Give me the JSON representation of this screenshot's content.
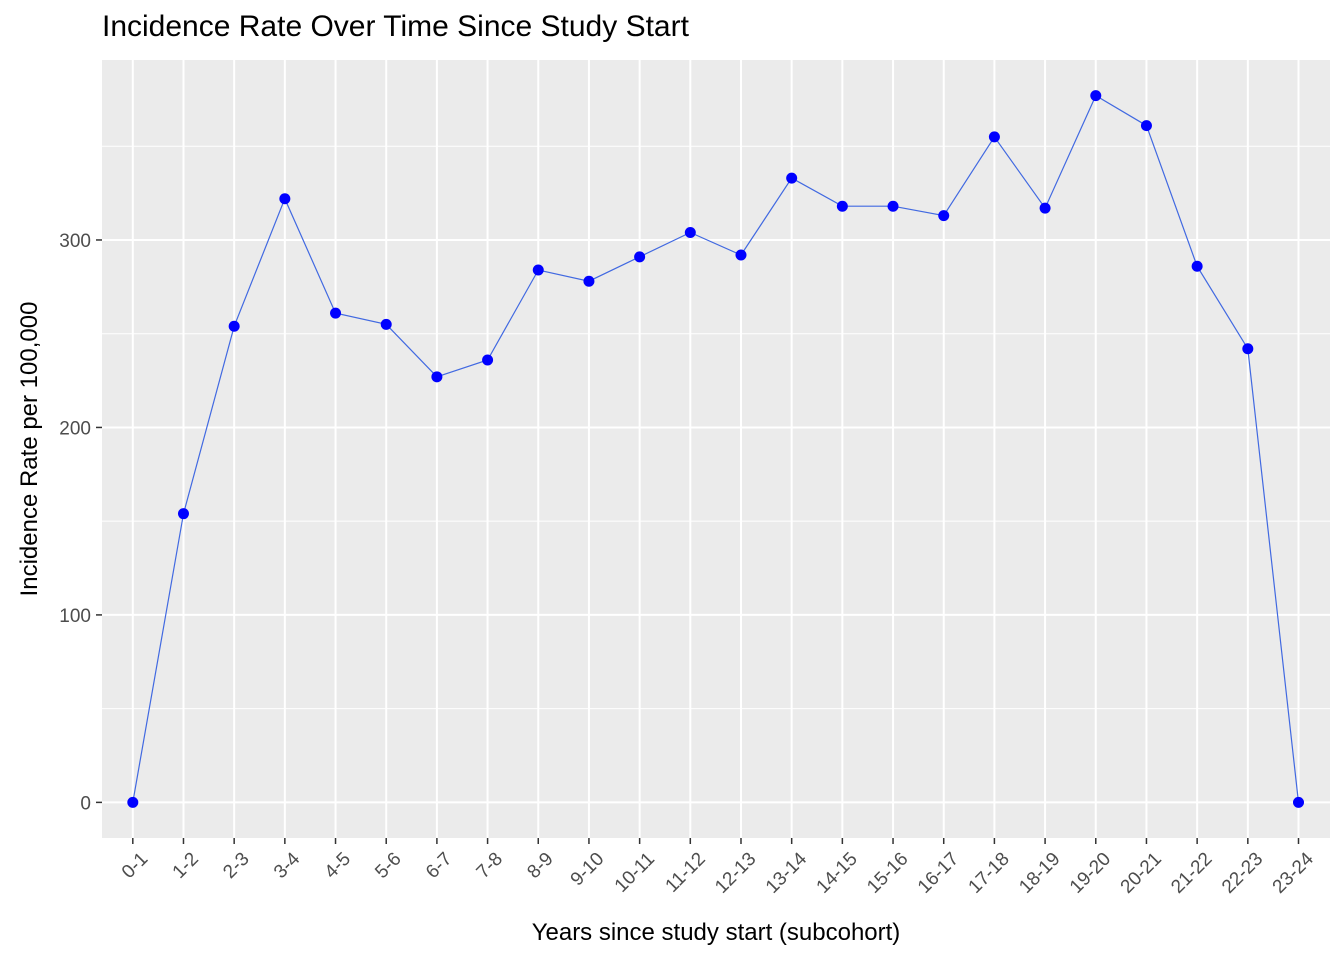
{
  "chart_data": {
    "type": "line",
    "title": "Incidence Rate Over Time Since Study Start",
    "xlabel": "Years since study start (subcohort)",
    "ylabel": "Incidence Rate per 100,000",
    "categories": [
      "0-1",
      "1-2",
      "2-3",
      "3-4",
      "4-5",
      "5-6",
      "6-7",
      "7-8",
      "8-9",
      "9-10",
      "10-11",
      "11-12",
      "12-13",
      "13-14",
      "14-15",
      "15-16",
      "16-17",
      "17-18",
      "18-19",
      "19-20",
      "20-21",
      "21-22",
      "22-23",
      "23-24"
    ],
    "series": [
      {
        "values": [
          0,
          154,
          254,
          322,
          261,
          255,
          227,
          236,
          284,
          278,
          291,
          304,
          292,
          333,
          318,
          318,
          313,
          355,
          317,
          377,
          361,
          286,
          242,
          0
        ],
        "line_color": "#4169e1",
        "marker_color": "#0000ff"
      }
    ],
    "yticks": [
      0,
      100,
      200,
      300
    ],
    "ylim": [
      -19,
      396
    ],
    "grid": true,
    "panel_background": "#ebebeb",
    "grid_color": "#ffffff"
  }
}
